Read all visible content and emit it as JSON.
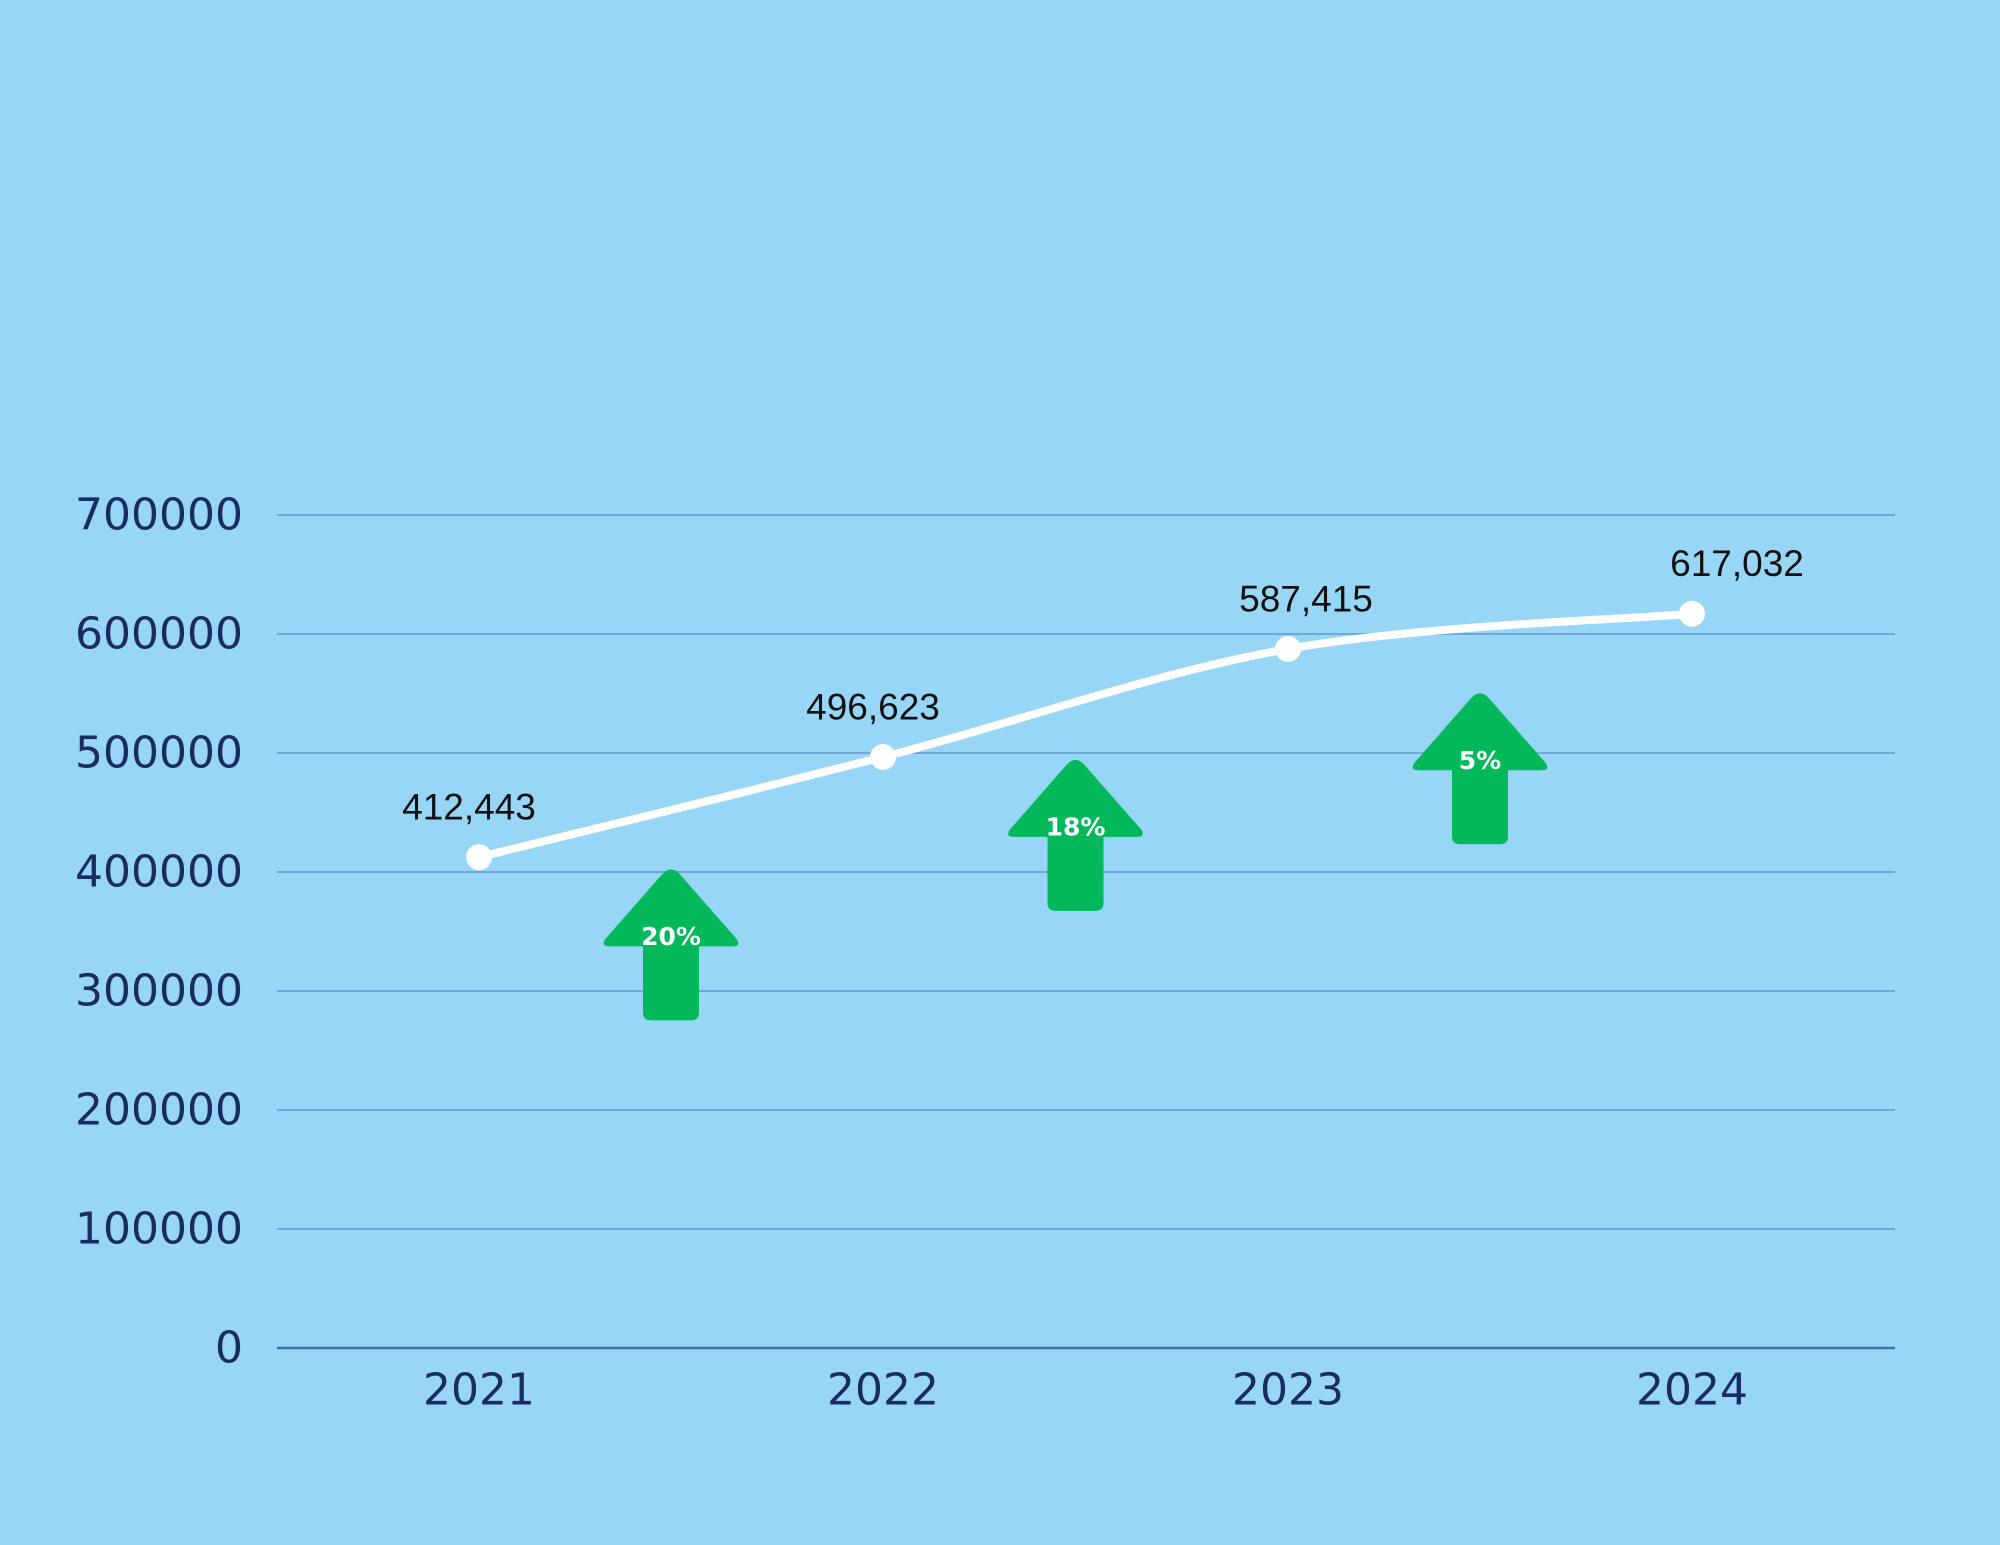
{
  "chart_data": {
    "type": "line",
    "categories": [
      "2021",
      "2022",
      "2023",
      "2024"
    ],
    "values": [
      412443,
      496623,
      587415,
      617032
    ],
    "data_labels": [
      "412,443",
      "496,623",
      "587,415",
      "617,032"
    ],
    "yticks": [
      0,
      100000,
      200000,
      300000,
      400000,
      500000,
      600000,
      700000
    ],
    "ytick_labels": [
      "0",
      "100000",
      "200000",
      "300000",
      "400000",
      "500000",
      "600000",
      "700000"
    ],
    "ylim": [
      0,
      700000
    ],
    "grid": true,
    "growth_annotations": [
      {
        "label": "20%",
        "between": [
          "2021",
          "2022"
        ],
        "value": 340000
      },
      {
        "label": "18%",
        "between": [
          "2022",
          "2023"
        ],
        "value": 432000
      },
      {
        "label": "5%",
        "between": [
          "2023",
          "2024"
        ],
        "value": 488000
      }
    ],
    "colors": {
      "background": "#97d6f7",
      "line": "#ffffff",
      "grid": "#6fa8d4",
      "axis": "#3f6fa8",
      "ticks": "#1a2b5e",
      "arrow": "#03b85a"
    }
  }
}
